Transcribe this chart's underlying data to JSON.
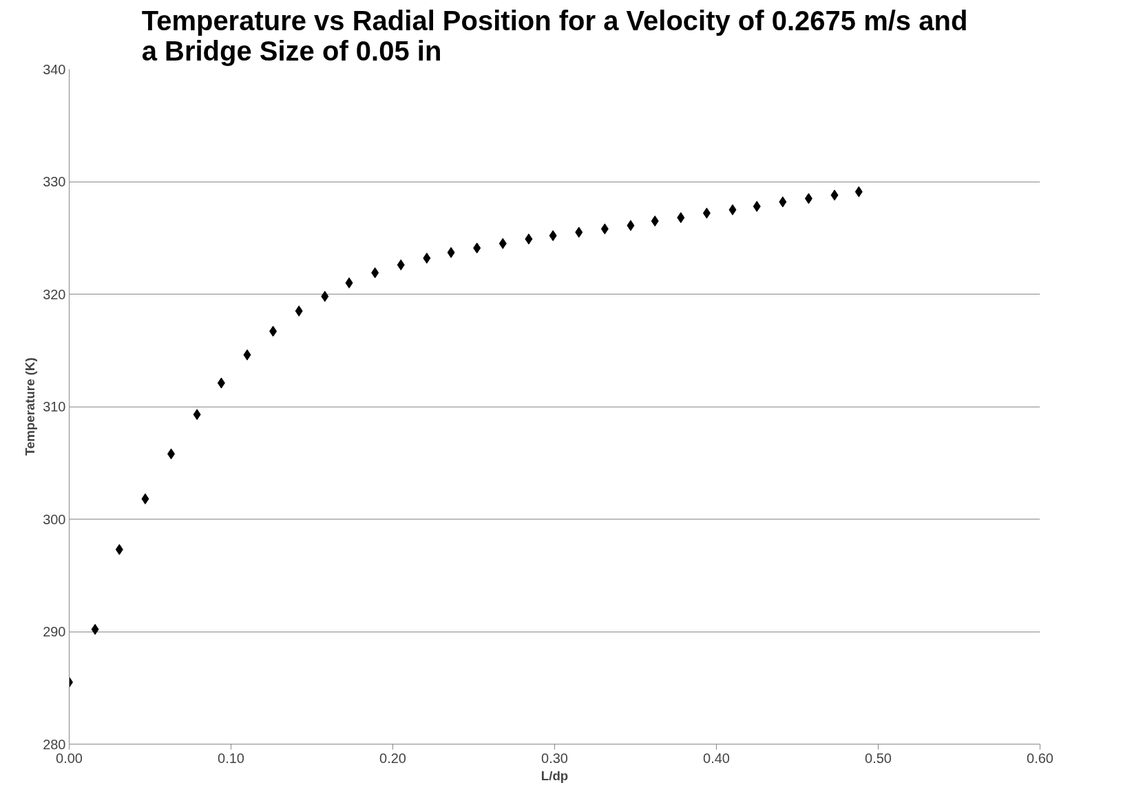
{
  "chart_data": {
    "type": "scatter",
    "title": "Temperature vs Radial Position for a Velocity of 0.2675 m/s and\na Bridge Size of 0.05 in",
    "xlabel": "L/dp",
    "ylabel": "Temperature (K)",
    "x": [
      0.0,
      0.016,
      0.031,
      0.047,
      0.063,
      0.079,
      0.094,
      0.11,
      0.126,
      0.142,
      0.158,
      0.173,
      0.189,
      0.205,
      0.221,
      0.236,
      0.252,
      0.268,
      0.284,
      0.299,
      0.315,
      0.331,
      0.347,
      0.362,
      0.378,
      0.394,
      0.41,
      0.425,
      0.441,
      0.457,
      0.473,
      0.488
    ],
    "series": [
      {
        "color": "#000000",
        "values": [
          285.5,
          290.2,
          297.3,
          301.8,
          305.8,
          309.3,
          312.1,
          314.6,
          316.7,
          318.5,
          319.8,
          321.0,
          321.9,
          322.6,
          323.2,
          323.7,
          324.1,
          324.5,
          324.9,
          325.2,
          325.5,
          325.8,
          326.1,
          326.5,
          326.8,
          327.2,
          327.5,
          327.8,
          328.2,
          328.5,
          328.8,
          329.1
        ]
      }
    ],
    "xlim": [
      0,
      0.6
    ],
    "ylim": [
      280,
      340
    ],
    "xticks": [
      {
        "value": 0,
        "label": "0.00"
      },
      {
        "value": 0.1,
        "label": "0.10"
      },
      {
        "value": 0.2,
        "label": "0.20"
      },
      {
        "value": 0.3,
        "label": "0.30"
      },
      {
        "value": 0.4,
        "label": "0.40"
      },
      {
        "value": 0.5,
        "label": "0.50"
      },
      {
        "value": 0.6,
        "label": "0.60"
      }
    ],
    "yticks": [
      280,
      290,
      300,
      310,
      320,
      330,
      340
    ],
    "grid": "y",
    "marker": "diamond"
  }
}
